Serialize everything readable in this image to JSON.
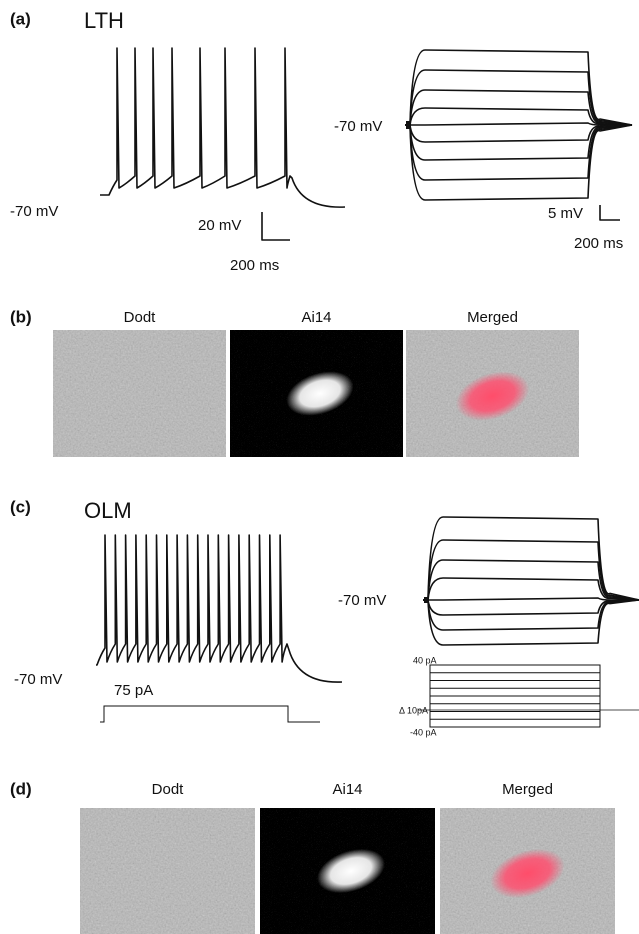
{
  "panels": [
    {
      "label": "(a)",
      "title": "LTH",
      "left_trace": {
        "baseline": "-70 mV",
        "scale_y": "20 mV",
        "scale_x": "200 ms"
      },
      "right_trace": {
        "baseline": "-70 mV",
        "scale_y": "5 mV",
        "scale_x": "200 ms"
      }
    },
    {
      "label": "(b)",
      "images": [
        "Dodt",
        "Ai14",
        "Merged"
      ]
    },
    {
      "label": "(c)",
      "title": "OLM",
      "left_trace": {
        "baseline": "-70 mV",
        "stimulus": "75 pA"
      },
      "right_trace": {
        "baseline": "-70 mV",
        "current_max": "40 pA",
        "current_step": "Δ 10pA",
        "current_min": "-40 pA"
      }
    },
    {
      "label": "(d)",
      "images": [
        "Dodt",
        "Ai14",
        "Merged"
      ]
    }
  ]
}
